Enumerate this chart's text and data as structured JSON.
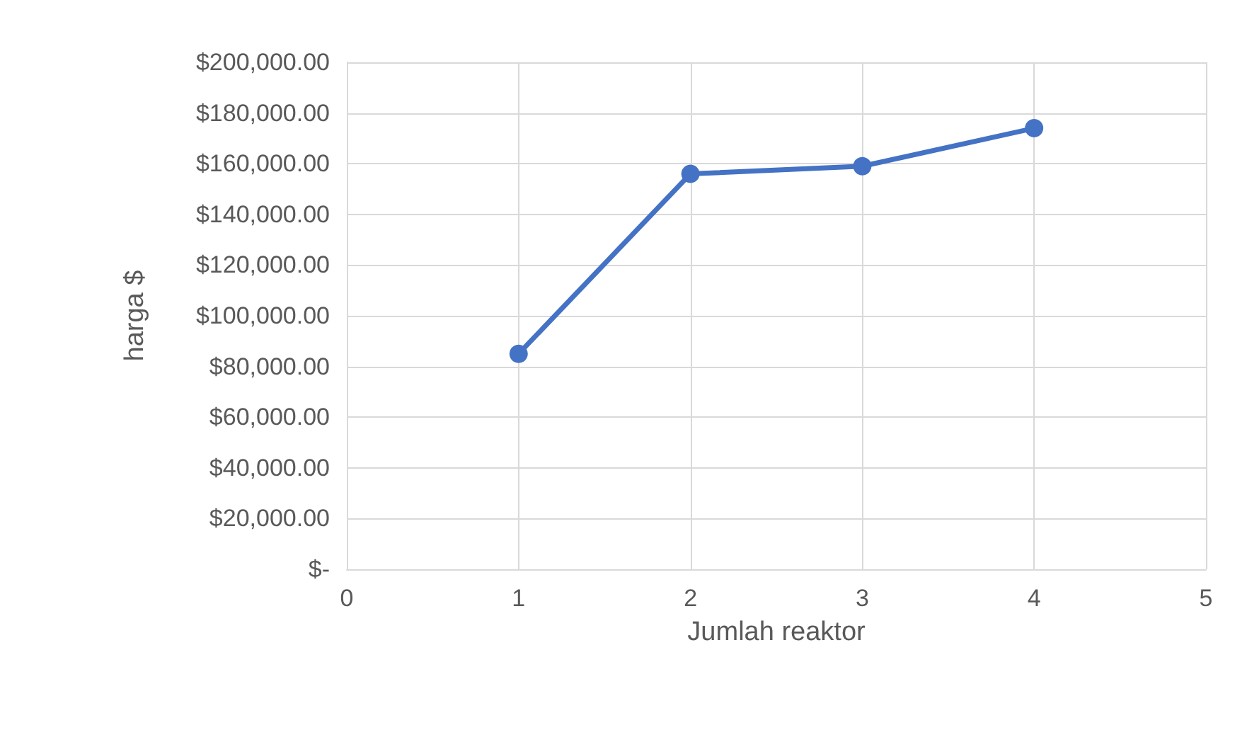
{
  "chart_data": {
    "type": "line",
    "xlabel": "Jumlah reaktor",
    "ylabel": "harga $",
    "x": [
      1,
      2,
      3,
      4
    ],
    "series": [
      {
        "color": "#4472c4",
        "values": [
          85000,
          156000,
          159000,
          174000
        ]
      }
    ],
    "xlim": [
      0,
      5
    ],
    "xticks": [
      0,
      1,
      2,
      3,
      4,
      5
    ],
    "ylim": [
      0,
      200000
    ],
    "yticks": [
      {
        "value": 0,
        "label": "$-"
      },
      {
        "value": 20000,
        "label": "$20,000.00"
      },
      {
        "value": 40000,
        "label": "$40,000.00"
      },
      {
        "value": 60000,
        "label": "$60,000.00"
      },
      {
        "value": 80000,
        "label": "$80,000.00"
      },
      {
        "value": 100000,
        "label": "$100,000.00"
      },
      {
        "value": 120000,
        "label": "$120,000.00"
      },
      {
        "value": 140000,
        "label": "$140,000.00"
      },
      {
        "value": 160000,
        "label": "$160,000.00"
      },
      {
        "value": 180000,
        "label": "$180,000.00"
      },
      {
        "value": 200000,
        "label": "$200,000.00"
      }
    ],
    "grid": true,
    "marker": "circle",
    "line_style": "solid"
  }
}
